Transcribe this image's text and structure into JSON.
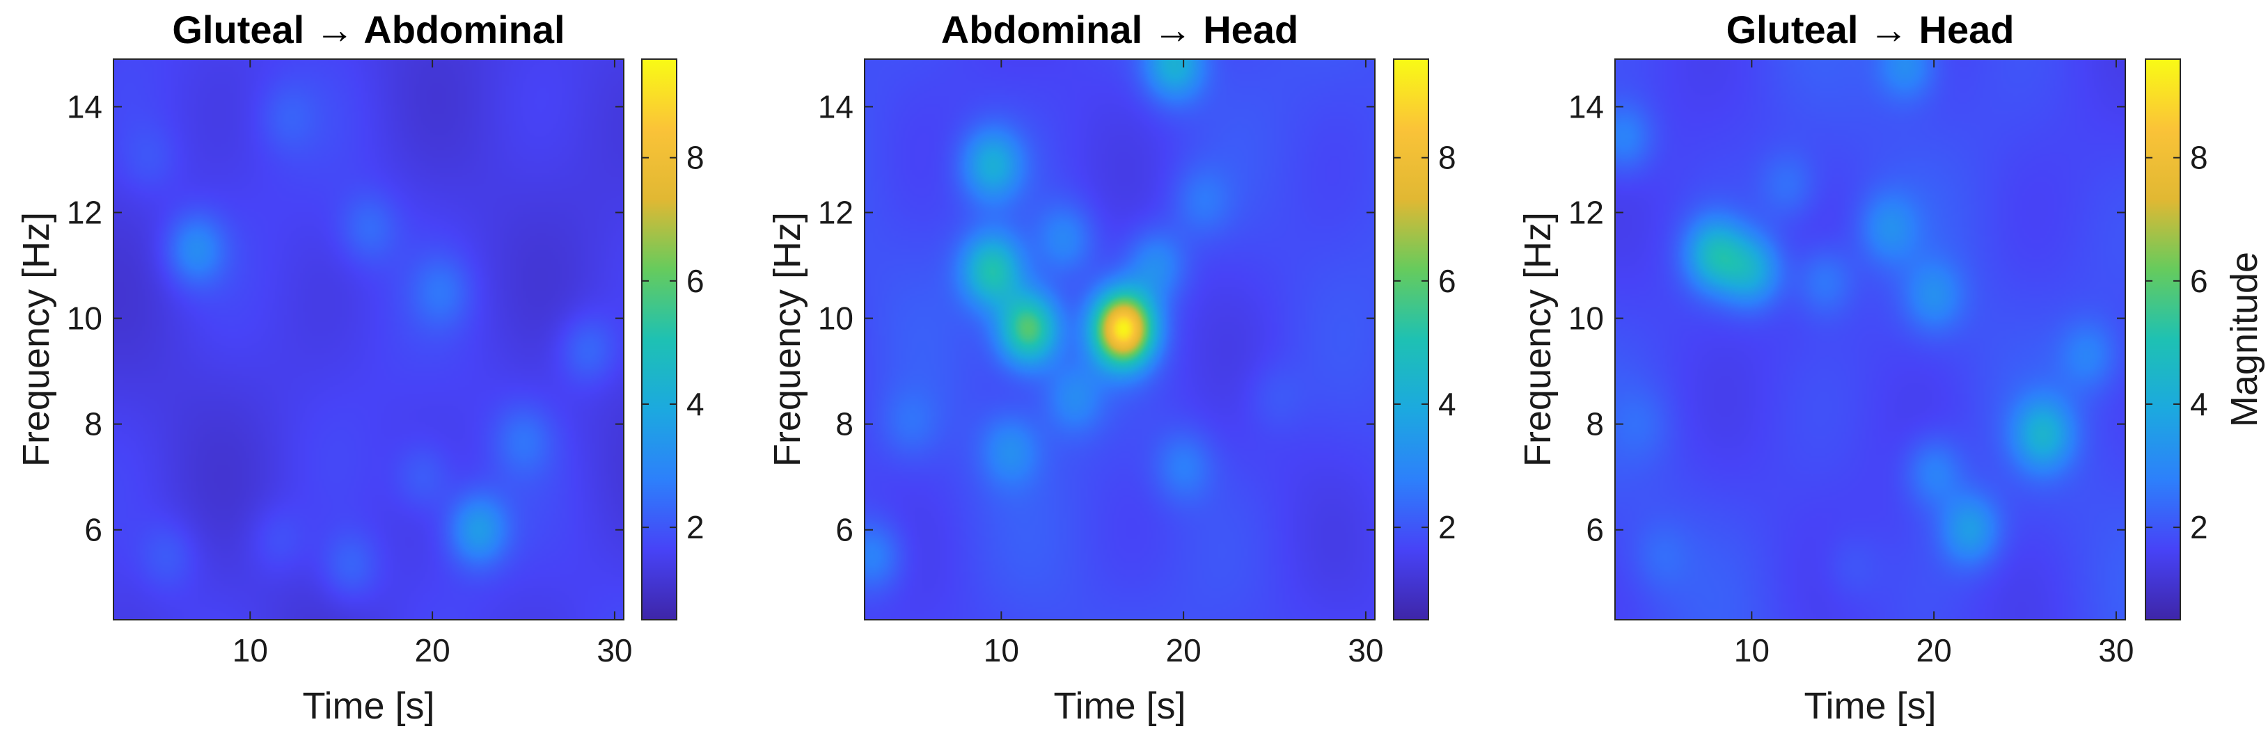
{
  "chart_data": [
    {
      "type": "heatmap",
      "title": "Gluteal → Abdominal",
      "xlabel": "Time [s]",
      "ylabel": "Frequency [Hz]",
      "xlim": [
        2.5,
        30.5
      ],
      "ylim": [
        4.3,
        14.9
      ],
      "xticks": [
        10,
        20,
        30
      ],
      "yticks": [
        6,
        8,
        10,
        12,
        14
      ],
      "colorbar": {
        "ticks": [
          2,
          4,
          6,
          8
        ],
        "range": [
          0.5,
          9.6
        ],
        "label": "",
        "colormap": "parula"
      },
      "background_level": 1.5,
      "peaks": [
        {
          "t": 7.0,
          "f": 11.3,
          "v": 3.0
        },
        {
          "t": 16.5,
          "f": 11.7,
          "v": 2.3
        },
        {
          "t": 20.5,
          "f": 10.5,
          "v": 2.3
        },
        {
          "t": 28.5,
          "f": 9.4,
          "v": 2.4
        },
        {
          "t": 22.5,
          "f": 6.0,
          "v": 3.4
        },
        {
          "t": 25.0,
          "f": 7.7,
          "v": 2.3
        },
        {
          "t": 19.5,
          "f": 7.0,
          "v": 2.2
        },
        {
          "t": 15.5,
          "f": 5.3,
          "v": 2.3
        },
        {
          "t": 5.5,
          "f": 5.5,
          "v": 2.1
        },
        {
          "t": 11.5,
          "f": 5.8,
          "v": 2.0
        },
        {
          "t": 12.0,
          "f": 13.8,
          "v": 2.0
        },
        {
          "t": 4.5,
          "f": 13.0,
          "v": 1.9
        }
      ]
    },
    {
      "type": "heatmap",
      "title": "Abdominal → Head",
      "xlabel": "Time [s]",
      "ylabel": "Frequency [Hz]",
      "xlim": [
        2.5,
        30.5
      ],
      "ylim": [
        4.3,
        14.9
      ],
      "xticks": [
        10,
        20,
        30
      ],
      "yticks": [
        6,
        8,
        10,
        12,
        14
      ],
      "colorbar": {
        "ticks": [
          2,
          4,
          6,
          8
        ],
        "range": [
          0.5,
          9.6
        ],
        "label": "",
        "colormap": "parula"
      },
      "background_level": 1.8,
      "peaks": [
        {
          "t": 16.7,
          "f": 9.8,
          "v": 9.3
        },
        {
          "t": 11.5,
          "f": 9.8,
          "v": 6.0
        },
        {
          "t": 9.5,
          "f": 10.9,
          "v": 5.0
        },
        {
          "t": 9.5,
          "f": 12.9,
          "v": 4.0
        },
        {
          "t": 19.5,
          "f": 14.8,
          "v": 4.2
        },
        {
          "t": 13.5,
          "f": 11.5,
          "v": 3.0
        },
        {
          "t": 18.5,
          "f": 11.0,
          "v": 3.2
        },
        {
          "t": 14.0,
          "f": 8.5,
          "v": 3.0
        },
        {
          "t": 10.5,
          "f": 7.5,
          "v": 3.0
        },
        {
          "t": 20.0,
          "f": 7.2,
          "v": 2.8
        },
        {
          "t": 3.0,
          "f": 5.5,
          "v": 3.0
        },
        {
          "t": 5.0,
          "f": 8.0,
          "v": 2.4
        },
        {
          "t": 21.0,
          "f": 12.2,
          "v": 2.6
        },
        {
          "t": 25.0,
          "f": 8.5,
          "v": 2.2
        }
      ]
    },
    {
      "type": "heatmap",
      "title": "Gluteal → Head",
      "xlabel": "Time [s]",
      "ylabel": "Frequency [Hz]",
      "xlim": [
        2.5,
        30.5
      ],
      "ylim": [
        4.3,
        14.9
      ],
      "xticks": [
        10,
        20,
        30
      ],
      "yticks": [
        6,
        8,
        10,
        12,
        14
      ],
      "colorbar": {
        "ticks": [
          2,
          4,
          6,
          8
        ],
        "range": [
          0.5,
          9.6
        ],
        "label": "Magnitude",
        "colormap": "parula"
      },
      "background_level": 1.8,
      "peaks": [
        {
          "t": 8.0,
          "f": 11.2,
          "v": 4.5
        },
        {
          "t": 10.0,
          "f": 10.9,
          "v": 4.0
        },
        {
          "t": 26.0,
          "f": 7.8,
          "v": 4.0
        },
        {
          "t": 22.0,
          "f": 6.0,
          "v": 3.6
        },
        {
          "t": 18.5,
          "f": 14.8,
          "v": 3.2
        },
        {
          "t": 3.0,
          "f": 13.4,
          "v": 3.0
        },
        {
          "t": 17.5,
          "f": 11.7,
          "v": 3.0
        },
        {
          "t": 20.0,
          "f": 10.4,
          "v": 3.0
        },
        {
          "t": 28.5,
          "f": 9.3,
          "v": 2.8
        },
        {
          "t": 20.0,
          "f": 7.1,
          "v": 3.0
        },
        {
          "t": 14.0,
          "f": 10.7,
          "v": 2.8
        },
        {
          "t": 12.0,
          "f": 12.5,
          "v": 2.6
        },
        {
          "t": 5.0,
          "f": 5.5,
          "v": 2.3
        },
        {
          "t": 15.5,
          "f": 5.3,
          "v": 2.2
        },
        {
          "t": 4.0,
          "f": 8.0,
          "v": 2.2
        }
      ]
    }
  ]
}
